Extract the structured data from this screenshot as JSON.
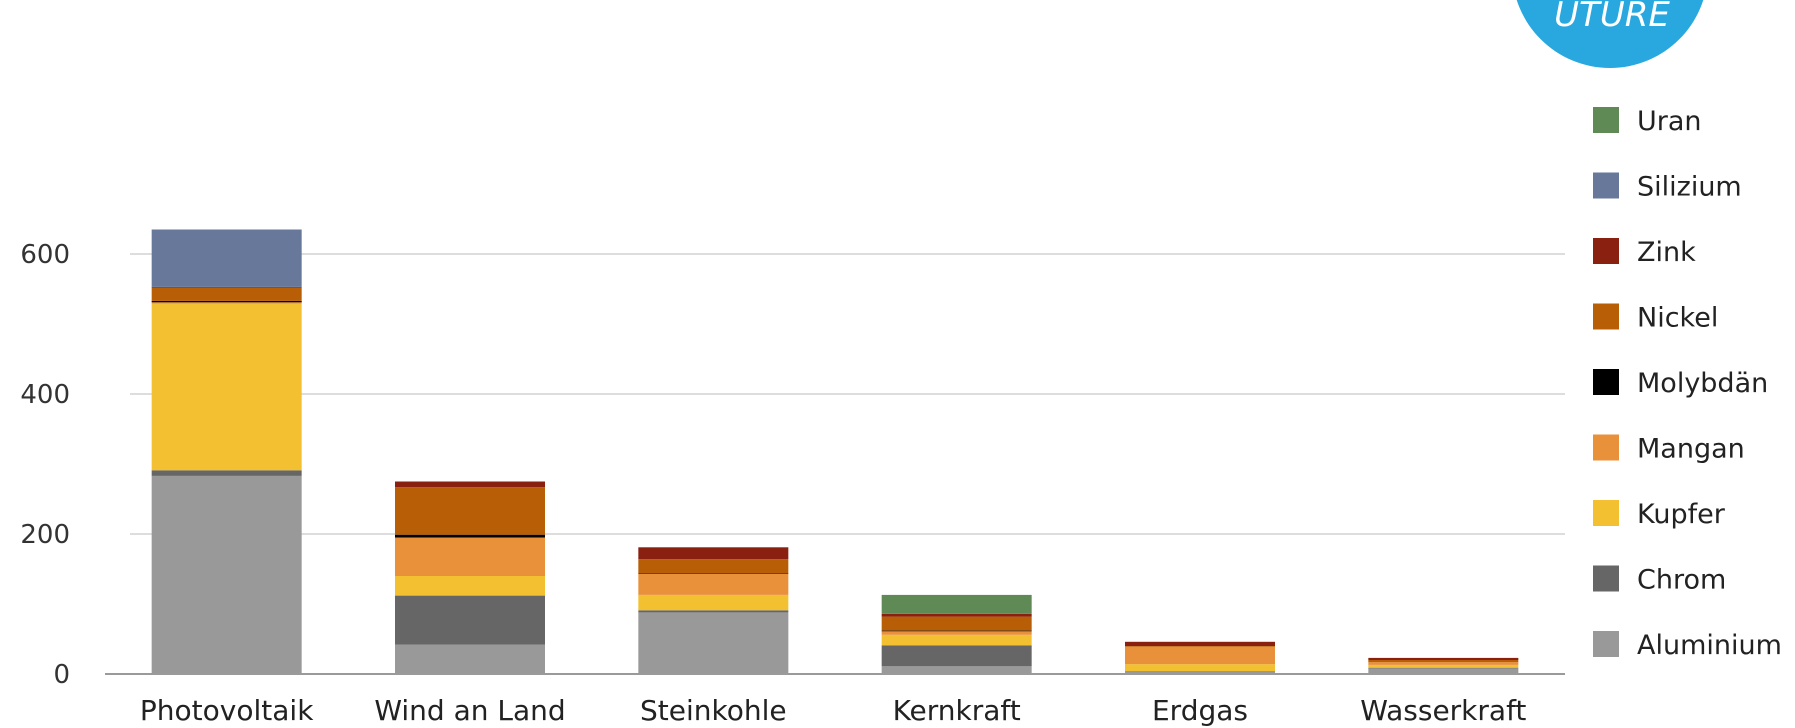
{
  "logo": {
    "text": "UTURE",
    "color": "#29a8e0"
  },
  "chart_data": {
    "type": "bar",
    "stacked": true,
    "title": "",
    "xlabel": "",
    "ylabel": "",
    "ylim": [
      0,
      640
    ],
    "yticks": [
      0,
      200,
      400,
      600
    ],
    "grid": true,
    "legend_position": "right",
    "categories": [
      "Photovoltaik",
      "Wind an Land",
      "Steinkohle",
      "Kernkraft",
      "Erdgas",
      "Wasserkraft"
    ],
    "series": [
      {
        "name": "Aluminium",
        "color": "#999999",
        "values": [
          283,
          42,
          88,
          11,
          3,
          8
        ]
      },
      {
        "name": "Chrom",
        "color": "#666666",
        "values": [
          8,
          70,
          3,
          30,
          1,
          1
        ]
      },
      {
        "name": "Kupfer",
        "color": "#f2c030",
        "values": [
          238,
          28,
          22,
          15,
          10,
          4
        ]
      },
      {
        "name": "Mangan",
        "color": "#e8913a",
        "values": [
          2,
          55,
          30,
          5,
          25,
          4
        ]
      },
      {
        "name": "Molybdän",
        "color": "#000000",
        "values": [
          2,
          4,
          1,
          1,
          0,
          0
        ]
      },
      {
        "name": "Nickel",
        "color": "#b85e06",
        "values": [
          19,
          68,
          20,
          20,
          1,
          3
        ]
      },
      {
        "name": "Zink",
        "color": "#8a2010",
        "values": [
          1,
          8,
          17,
          4,
          6,
          3
        ]
      },
      {
        "name": "Silizium",
        "color": "#67789a",
        "values": [
          82,
          0,
          0,
          0,
          0,
          0
        ]
      },
      {
        "name": "Uran",
        "color": "#5f8a55",
        "values": [
          0,
          0,
          0,
          27,
          0,
          0
        ]
      }
    ]
  }
}
